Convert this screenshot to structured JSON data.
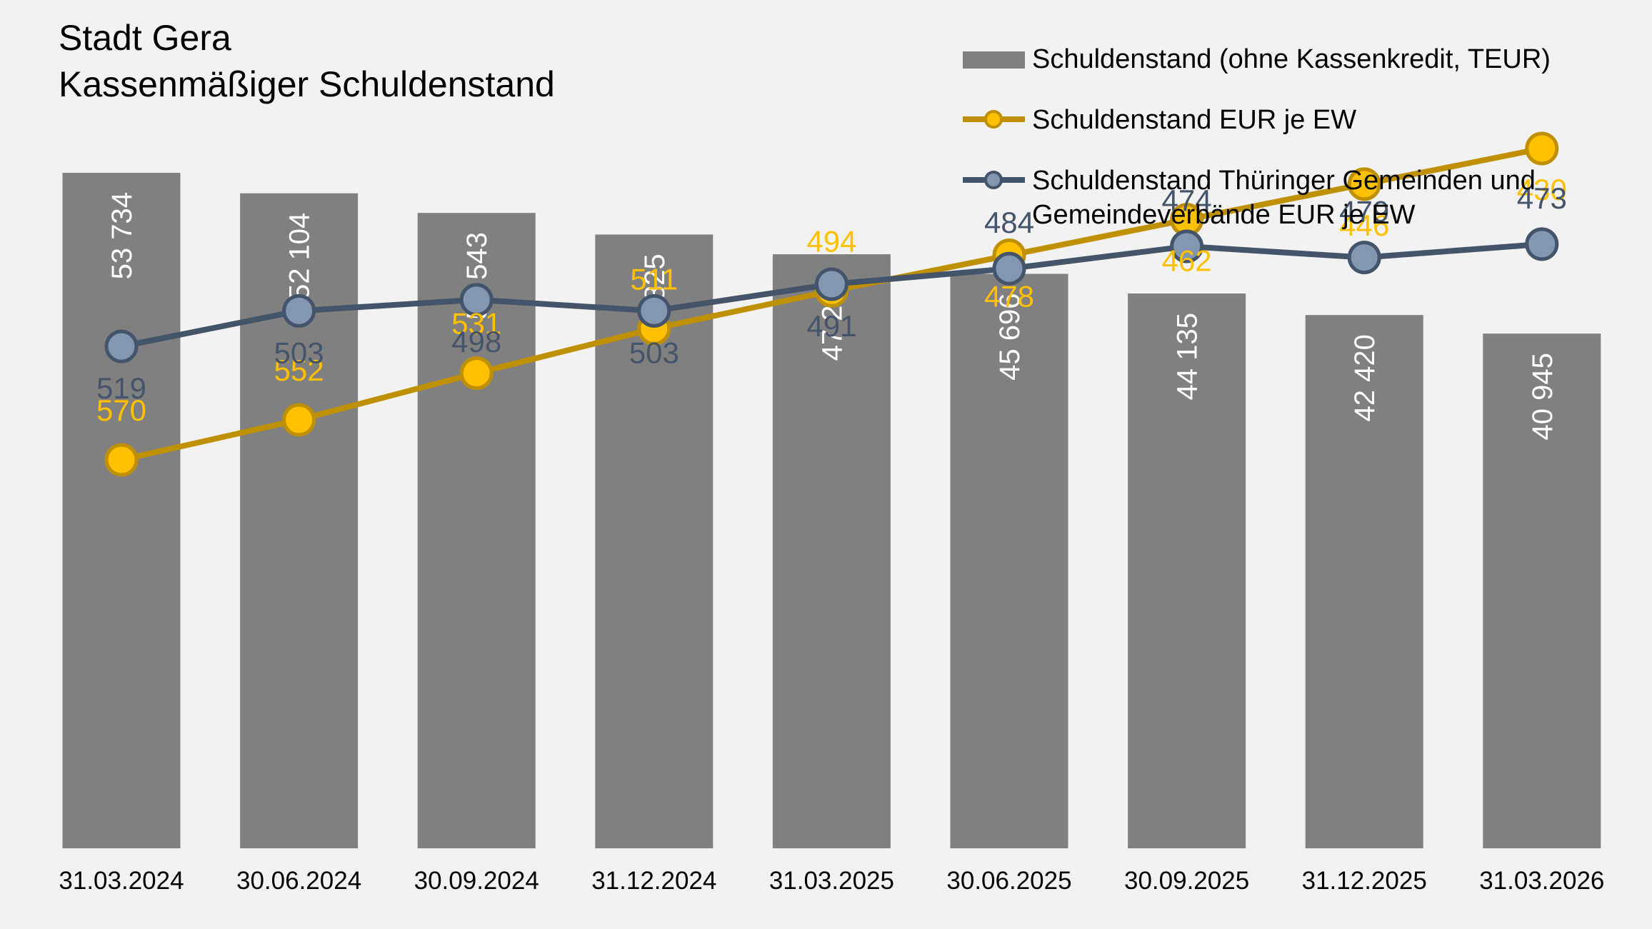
{
  "chart_data": {
    "type": "bar",
    "title": "Stadt Gera",
    "subtitle": "Kassenmäßiger Schuldenstand",
    "categories": [
      "31.03.2024",
      "30.06.2024",
      "30.09.2024",
      "31.12.2024",
      "31.03.2025",
      "30.06.2025",
      "30.09.2025",
      "31.12.2025",
      "31.03.2026"
    ],
    "series": [
      {
        "name": "Schuldenstand (ohne Kassenkredit, TEUR)",
        "type": "bar",
        "values": [
          53734,
          52104,
          50543,
          48825,
          47256,
          45696,
          44135,
          42420,
          40945
        ],
        "labels": [
          "53 734",
          "52 104",
          "50 543",
          "48 825",
          "47 256",
          "45 696",
          "44 135",
          "42 420",
          "40 945"
        ],
        "color": "#808080"
      },
      {
        "name": "Schuldenstand EUR je EW",
        "type": "line",
        "values": [
          570,
          552,
          531,
          511,
          494,
          478,
          462,
          446,
          430
        ],
        "labels": [
          "570",
          "552",
          "531",
          "511",
          "494",
          "478",
          "462",
          "446",
          "430"
        ],
        "color": "#bf9000",
        "marker_color": "#ffc000"
      },
      {
        "name_lines": [
          "Schuldenstand Thüringer Gemeinden und",
          "Gemeindeverbände EUR je EW"
        ],
        "type": "line",
        "values": [
          519,
          503,
          498,
          503,
          491,
          484,
          474,
          479,
          473
        ],
        "labels": [
          "519",
          "503",
          "498",
          "503",
          "491",
          "484",
          "474",
          "479",
          "473"
        ],
        "color": "#44546a",
        "marker_color": "#8497b0"
      }
    ],
    "legend_position": "top-right",
    "grid": false
  }
}
